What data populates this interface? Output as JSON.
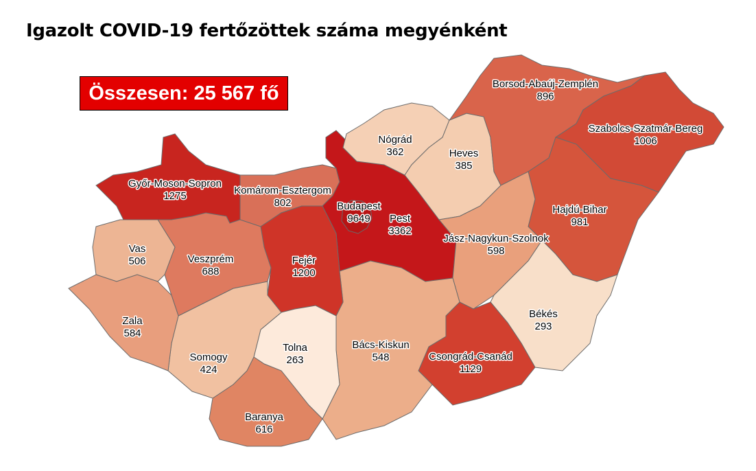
{
  "title": "Igazolt COVID-19 fertőzöttek száma megyénként",
  "total_label": "Összesen: 25 567 fő",
  "counties": [
    {
      "id": "gyor",
      "name": "Győr-Moson-Sopron",
      "value": "1275",
      "color": "#c8251f"
    },
    {
      "id": "komarom",
      "name": "Komárom-Esztergom",
      "value": "802",
      "color": "#d97058"
    },
    {
      "id": "pest",
      "name": "Pest",
      "value": "3362",
      "color": "#c4171a"
    },
    {
      "id": "budapest",
      "name": "Budapest",
      "value": "9649",
      "color": "#b81414"
    },
    {
      "id": "nograd",
      "name": "Nógrád",
      "value": "362",
      "color": "#f5d0b5"
    },
    {
      "id": "heves",
      "name": "Heves",
      "value": "385",
      "color": "#f4cdb0"
    },
    {
      "id": "borsod",
      "name": "Borsod-Abaúj-Zemplén",
      "value": "896",
      "color": "#d9644b"
    },
    {
      "id": "szabolcs",
      "name": "Szabolcs-Szatmár-Bereg",
      "value": "1006",
      "color": "#d24a36"
    },
    {
      "id": "hajdu",
      "name": "Hajdú-Bihar",
      "value": "981",
      "color": "#d5553c"
    },
    {
      "id": "jasz",
      "name": "Jász-Nagykun-Szolnok",
      "value": "598",
      "color": "#e9a07c"
    },
    {
      "id": "bekes",
      "name": "Békés",
      "value": "293",
      "color": "#f8dfc9"
    },
    {
      "id": "csongrad",
      "name": "Csongrád-Csanád",
      "value": "1129",
      "color": "#d2402f"
    },
    {
      "id": "bacs",
      "name": "Bács-Kiskun",
      "value": "548",
      "color": "#ecae8a"
    },
    {
      "id": "fejer",
      "name": "Fejér",
      "value": "1200",
      "color": "#cf3428"
    },
    {
      "id": "tolna",
      "name": "Tolna",
      "value": "263",
      "color": "#fdeadb"
    },
    {
      "id": "baranya",
      "name": "Baranya",
      "value": "616",
      "color": "#e08563"
    },
    {
      "id": "somogy",
      "name": "Somogy",
      "value": "424",
      "color": "#f1c1a1"
    },
    {
      "id": "veszprem",
      "name": "Veszprém",
      "value": "688",
      "color": "#de7a5f"
    },
    {
      "id": "vas",
      "name": "Vas",
      "value": "506",
      "color": "#edb594"
    },
    {
      "id": "zala",
      "name": "Zala",
      "value": "584",
      "color": "#e89e7d"
    }
  ]
}
